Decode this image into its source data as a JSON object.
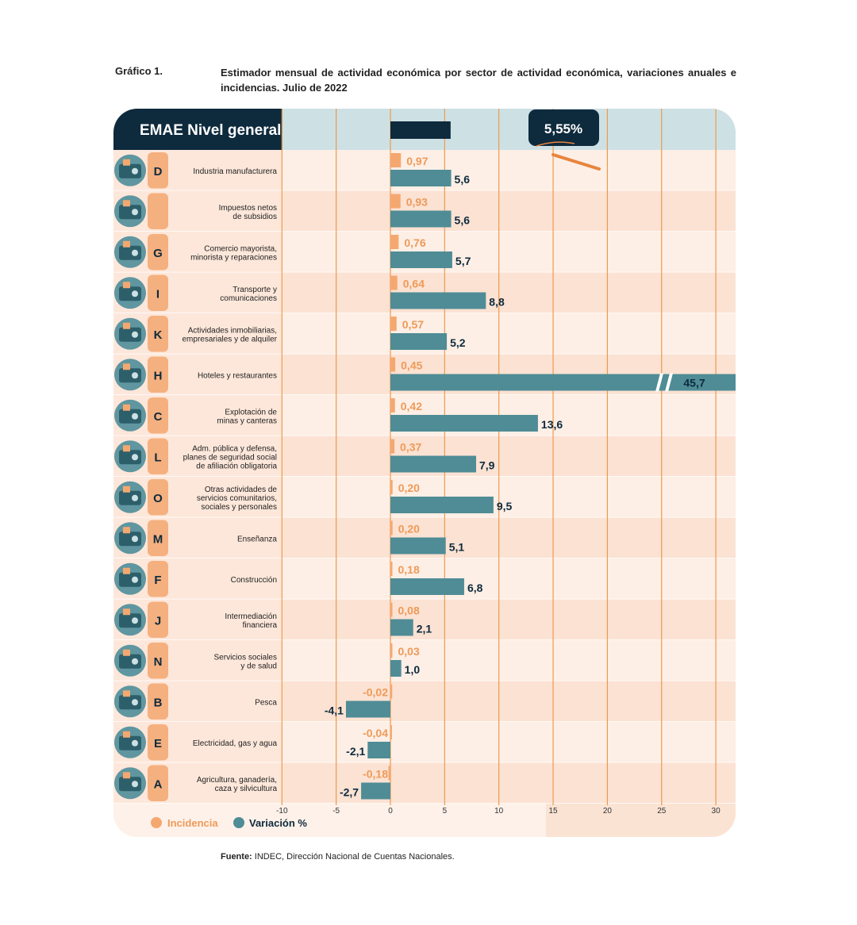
{
  "figure_label": "Gráfico 1.",
  "title": "Estimador mensual de actividad económica por sector de actividad económica, variaciones anuales e incidencias. Julio de 2022",
  "source_label": "Fuente:",
  "source_text": "INDEC, Dirección Nacional de Cuentas Nacionales.",
  "general_header": "EMAE Nivel general",
  "general_value_label": "5,55%",
  "colors": {
    "incidencia": "#f4a870",
    "variacion": "#4f8c96",
    "navy": "#0e2a3d",
    "row_light": "#fdeee4",
    "panel_left": "#f5b07f",
    "grid": "#ee9a4c"
  },
  "chart_data": {
    "type": "bar",
    "orientation": "horizontal",
    "title": "Estimador mensual de actividad económica por sector de actividad económica, variaciones anuales e incidencias. Julio de 2022",
    "general": {
      "label": "EMAE Nivel general",
      "value": 5.55,
      "value_label": "5,55%"
    },
    "xlim": [
      -10,
      30
    ],
    "xticks": [
      -10,
      -5,
      0,
      5,
      10,
      15,
      20,
      25,
      30
    ],
    "grid": true,
    "legend": "bottom-left",
    "series": [
      {
        "name": "Incidencia",
        "color": "#f4a870"
      },
      {
        "name": "Variación %",
        "color": "#4f8c96"
      }
    ],
    "categories": [
      {
        "letter": "D",
        "label": "Industria manufacturera",
        "icon": "gears-icon",
        "incidencia": 0.97,
        "incidencia_label": "0,97",
        "variacion": 5.6,
        "variacion_label": "5,6"
      },
      {
        "letter": "",
        "label": "Impuestos netos\nde subsidios",
        "icon": "tax-icon",
        "incidencia": 0.93,
        "incidencia_label": "0,93",
        "variacion": 5.6,
        "variacion_label": "5,6"
      },
      {
        "letter": "G",
        "label": "Comercio mayorista,\nminorista y reparaciones",
        "icon": "shop-icon",
        "incidencia": 0.76,
        "incidencia_label": "0,76",
        "variacion": 5.7,
        "variacion_label": "5,7"
      },
      {
        "letter": "I",
        "label": "Transporte y\ncomunicaciones",
        "icon": "transport-icon",
        "incidencia": 0.64,
        "incidencia_label": "0,64",
        "variacion": 8.8,
        "variacion_label": "8,8"
      },
      {
        "letter": "K",
        "label": "Actividades inmobiliarias,\nempresariales y de alquiler",
        "icon": "realestate-icon",
        "incidencia": 0.57,
        "incidencia_label": "0,57",
        "variacion": 5.2,
        "variacion_label": "5,2"
      },
      {
        "letter": "H",
        "label": "Hoteles y restaurantes",
        "icon": "hotel-icon",
        "incidencia": 0.45,
        "incidencia_label": "0,45",
        "variacion": 45.7,
        "variacion_label": "45,7",
        "broken": true
      },
      {
        "letter": "C",
        "label": "Explotación de\nminas y canteras",
        "icon": "mining-icon",
        "incidencia": 0.42,
        "incidencia_label": "0,42",
        "variacion": 13.6,
        "variacion_label": "13,6"
      },
      {
        "letter": "L",
        "label": "Adm. pública y defensa,\nplanes de seguridad social\nde afiliación obligatoria",
        "icon": "government-icon",
        "incidencia": 0.37,
        "incidencia_label": "0,37",
        "variacion": 7.9,
        "variacion_label": "7,9"
      },
      {
        "letter": "O",
        "label": "Otras actividades de\nservicios comunitarios,\nsociales y personales",
        "icon": "community-icon",
        "incidencia": 0.2,
        "incidencia_label": "0,20",
        "variacion": 9.5,
        "variacion_label": "9,5"
      },
      {
        "letter": "M",
        "label": "Enseñanza",
        "icon": "education-icon",
        "incidencia": 0.2,
        "incidencia_label": "0,20",
        "variacion": 5.1,
        "variacion_label": "5,1"
      },
      {
        "letter": "F",
        "label": "Construcción",
        "icon": "construction-icon",
        "incidencia": 0.18,
        "incidencia_label": "0,18",
        "variacion": 6.8,
        "variacion_label": "6,8"
      },
      {
        "letter": "J",
        "label": "Intermediación\nfinanciera",
        "icon": "bank-icon",
        "incidencia": 0.08,
        "incidencia_label": "0,08",
        "variacion": 2.1,
        "variacion_label": "2,1"
      },
      {
        "letter": "N",
        "label": "Servicios sociales\ny de salud",
        "icon": "health-icon",
        "incidencia": 0.03,
        "incidencia_label": "0,03",
        "variacion": 1.0,
        "variacion_label": "1,0"
      },
      {
        "letter": "B",
        "label": "Pesca",
        "icon": "fishing-icon",
        "incidencia": -0.02,
        "incidencia_label": "-0,02",
        "variacion": -4.1,
        "variacion_label": "-4,1"
      },
      {
        "letter": "E",
        "label": "Electricidad, gas y agua",
        "icon": "utilities-icon",
        "incidencia": -0.04,
        "incidencia_label": "-0,04",
        "variacion": -2.1,
        "variacion_label": "-2,1"
      },
      {
        "letter": "A",
        "label": "Agricultura, ganadería,\ncaza y silvicultura",
        "icon": "agriculture-icon",
        "incidencia": -0.18,
        "incidencia_label": "-0,18",
        "variacion": -2.7,
        "variacion_label": "-2,7"
      }
    ]
  }
}
